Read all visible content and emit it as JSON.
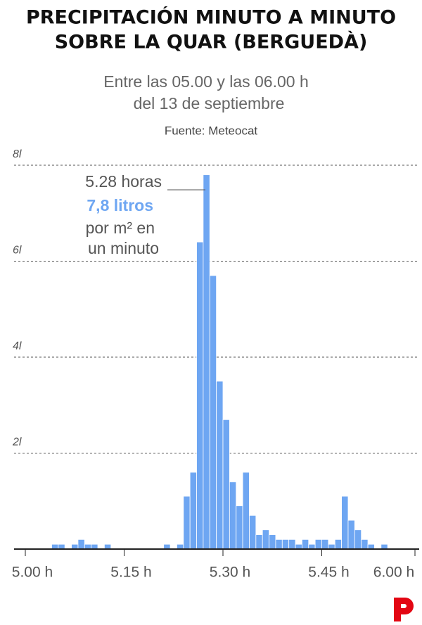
{
  "chart_data": {
    "type": "histogram",
    "title": [
      "PRECIPITACIÓN MINUTO A MINUTO",
      "SOBRE LA QUAR (BERGUEDÀ)"
    ],
    "subtitle": [
      "Entre las 05.00 y las 06.00 h",
      "del 13 de septiembre"
    ],
    "source": "Fuente:  Meteocat",
    "annotation": [
      "5.28 horas",
      "7,8 litros",
      "por m² en",
      "un minuto"
    ],
    "color": "#6ea6f2",
    "bins": [
      0,
      1,
      2,
      3,
      4,
      5,
      6,
      7,
      8,
      9,
      10,
      11,
      12,
      13,
      14,
      15,
      16,
      17,
      18,
      19,
      20,
      21,
      22,
      23,
      24,
      25,
      26,
      27,
      28,
      29,
      30,
      31,
      32,
      33,
      34,
      35,
      36,
      37,
      38,
      39,
      40,
      41,
      42,
      43,
      44,
      45,
      46,
      47,
      48,
      49,
      50,
      51,
      52,
      53,
      54,
      55,
      56,
      57,
      58,
      59,
      60
    ],
    "values": [
      0,
      0,
      0,
      0,
      0.1,
      0.1,
      0,
      0.1,
      0.2,
      0.1,
      0.1,
      0,
      0.1,
      0,
      0,
      0,
      0,
      0,
      0,
      0,
      0,
      0.1,
      0,
      0.1,
      1.1,
      1.6,
      6.4,
      7.8,
      5.7,
      3.5,
      2.7,
      1.4,
      0.9,
      1.6,
      0.7,
      0.3,
      0.4,
      0.3,
      0.2,
      0.2,
      0.2,
      0.1,
      0.2,
      0.1,
      0.2,
      0.2,
      0.1,
      0.2,
      1.1,
      0.6,
      0.4,
      0.2,
      0.1,
      0,
      0.1,
      0,
      0,
      0,
      0,
      0
    ],
    "xlim": [
      0,
      60
    ],
    "xticks": [
      {
        "value": 0,
        "label": "5.00 h"
      },
      {
        "value": 15,
        "label": "5.15 h"
      },
      {
        "value": 30,
        "label": "5.30 h"
      },
      {
        "value": 45,
        "label": "5.45 h"
      },
      {
        "value": 60,
        "label": "6.00 h"
      }
    ],
    "ylim": [
      0,
      8
    ],
    "yticks": [
      {
        "value": 2,
        "label": "2l"
      },
      {
        "value": 4,
        "label": "4l"
      },
      {
        "value": 6,
        "label": "6l"
      },
      {
        "value": 8,
        "label": "8l"
      }
    ],
    "grid": true
  }
}
